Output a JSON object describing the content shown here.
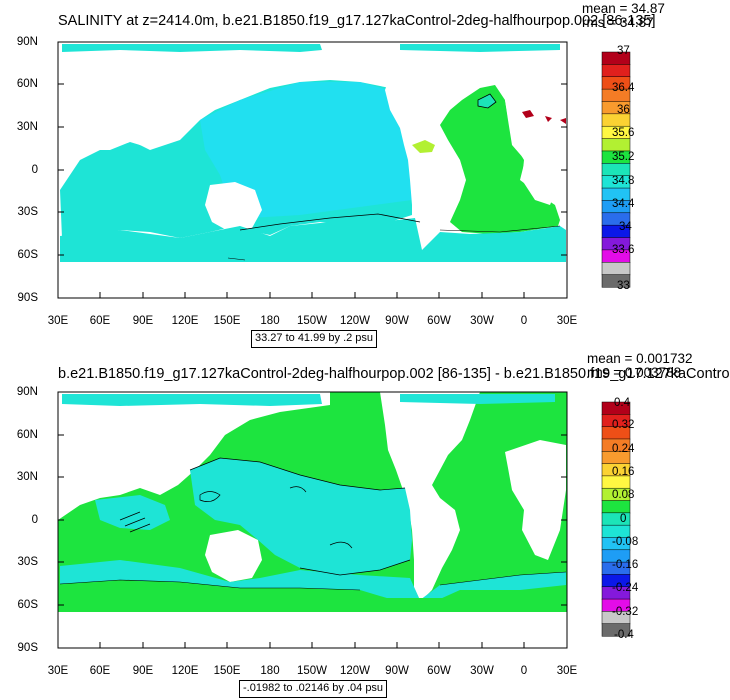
{
  "panel1": {
    "title": "SALINITY at z=2414.0m, b.e21.B1850.f19_g17.127kaControl-2deg-halfhourpop.002 [86-135]",
    "mean_text": "mean = 34.87",
    "rms_text": "rms = 34.87",
    "range_text": "33.27 to 41.99 by .2 psu",
    "colorbar_labels": [
      "37",
      "36.4",
      "36",
      "35.6",
      "35.2",
      "34.8",
      "34.4",
      "34",
      "33.6",
      "33"
    ],
    "colorbar_colors": [
      "#b2001a",
      "#e0201d",
      "#ee4f17",
      "#f47c25",
      "#f89b2e",
      "#fbd233",
      "#fff742",
      "#b2f032",
      "#1de43f",
      "#1ce4b8",
      "#1ee4d6",
      "#21c3f4",
      "#1e9df5",
      "#2a6dec",
      "#0b18e8",
      "#8419db",
      "#e30ce8",
      "#c8c8c8",
      "#6b6b6b"
    ]
  },
  "panel2": {
    "title": "b.e21.B1850.f19_g17.127kaControl-2deg-halfhourpop.002 [86-135] - b.e21.B1850.f19_g17.127kaContro",
    "mean_text": "mean = 0.001732",
    "rms_text": "rms = 0.003788",
    "range_text": "-.01982 to .02146 by .04 psu",
    "colorbar_labels": [
      "0.4",
      "0.32",
      "0.24",
      "0.16",
      "0.08",
      "0",
      "-0.08",
      "-0.16",
      "-0.24",
      "-0.32",
      "-0.4"
    ],
    "colorbar_colors": [
      "#b2001a",
      "#e0201d",
      "#ee4f17",
      "#f47c25",
      "#f89b2e",
      "#fbd233",
      "#fff742",
      "#b2f032",
      "#1de43f",
      "#1ce4b8",
      "#1ee4d6",
      "#21c3f4",
      "#1e9df5",
      "#2a6dec",
      "#0b18e8",
      "#8419db",
      "#e30ce8",
      "#c8c8c8",
      "#6b6b6b"
    ]
  },
  "axes": {
    "lat_labels": [
      "90N",
      "60N",
      "30N",
      "0",
      "30S",
      "60S",
      "90S"
    ],
    "lon_labels": [
      "30E",
      "60E",
      "90E",
      "120E",
      "150E",
      "180",
      "150W",
      "120W",
      "90W",
      "60W",
      "30W",
      "0",
      "30E"
    ]
  }
}
